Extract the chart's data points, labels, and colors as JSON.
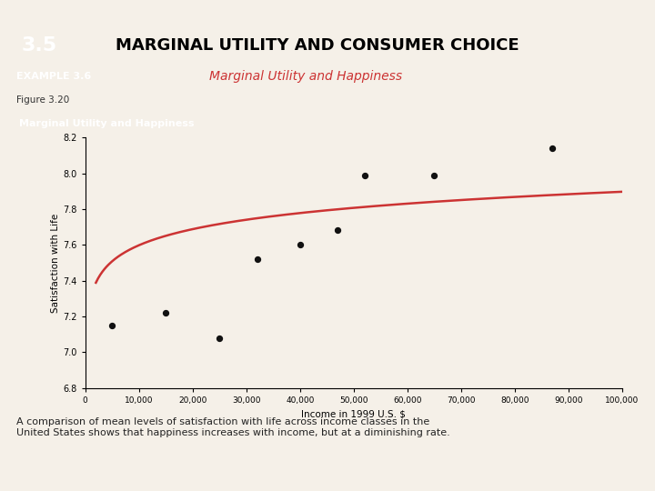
{
  "title_section": "3.5",
  "title_main": "MARGINAL UTILITY AND CONSUMER CHOICE",
  "example_label": "EXAMPLE 3.6",
  "example_title": "Marginal Utility and Happiness",
  "figure_label": "Figure 3.20",
  "chart_title": "Marginal Utility and Happiness",
  "xlabel": "Income in 1999 U.S. $",
  "ylabel": "Satisfaction with Life",
  "caption": "A comparison of mean levels of satisfaction with life across income classes in the\nUnited States shows that happiness increases with income, but at a diminishing rate.",
  "scatter_x": [
    5000,
    15000,
    25000,
    32000,
    40000,
    47000,
    52000,
    65000,
    87000
  ],
  "scatter_y": [
    7.15,
    7.22,
    7.08,
    7.52,
    7.6,
    7.68,
    7.99,
    7.99,
    8.14
  ],
  "xlim": [
    0,
    100000
  ],
  "ylim": [
    6.8,
    8.2
  ],
  "xticks": [
    0,
    10000,
    20000,
    30000,
    40000,
    50000,
    60000,
    70000,
    80000,
    90000,
    100000
  ],
  "xtick_labels": [
    "0",
    "10,000",
    "20,000",
    "30,000",
    "40,000",
    "50,000",
    "60,000",
    "70,000",
    "80,000",
    "90,000",
    "100,000"
  ],
  "yticks": [
    6.8,
    7.0,
    7.2,
    7.4,
    7.6,
    7.8,
    8.0,
    8.2
  ],
  "curve_color": "#cc3333",
  "scatter_color": "#111111",
  "bg_color": "#f5f0e8",
  "panel_bg": "#f5f0e8",
  "header_blue": "#2e6da4",
  "example_bg": "#c8a882",
  "example_text_color": "#ffffff",
  "example_title_color": "#cc3333",
  "chart_title_color": "#555555",
  "figure_label_color": "#333333",
  "caption_color": "#222222",
  "page_bg": "#f5f0e8",
  "top_border_color": "#5b9aaa",
  "curve_log_a": 6.4,
  "curve_log_b": 0.13
}
